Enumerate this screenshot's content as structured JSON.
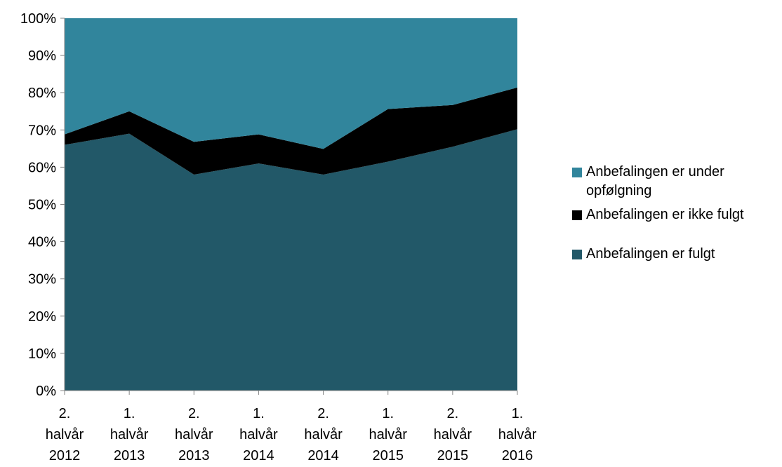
{
  "chart_data": {
    "type": "area",
    "stacked": true,
    "percent": true,
    "categories": [
      [
        "2.",
        "halvår",
        "2012"
      ],
      [
        "1.",
        "halvår",
        "2013"
      ],
      [
        "2.",
        "halvår",
        "2013"
      ],
      [
        "1.",
        "halvår",
        "2014"
      ],
      [
        "2.",
        "halvår",
        "2014"
      ],
      [
        "1.",
        "halvår",
        "2015"
      ],
      [
        "2.",
        "halvår",
        "2015"
      ],
      [
        "1.",
        "halvår",
        "2016"
      ]
    ],
    "series": [
      {
        "name": "Anbefalingen er fulgt",
        "color": "#225868",
        "values": [
          66,
          69,
          58,
          61,
          58,
          61.5,
          65.5,
          70.2
        ]
      },
      {
        "name": "Anbefalingen er ikke fulgt",
        "color": "#000000",
        "values": [
          2.8,
          6,
          8.8,
          7.8,
          6.9,
          14.1,
          11.2,
          11.2
        ]
      },
      {
        "name": "Anbefalingen er under opfølgning",
        "color": "#31859c",
        "values": [
          31.2,
          25,
          33.2,
          31.2,
          35.1,
          24.4,
          23.3,
          18.6
        ]
      }
    ],
    "y_ticks": [
      "0%",
      "10%",
      "20%",
      "30%",
      "40%",
      "50%",
      "60%",
      "70%",
      "80%",
      "90%",
      "100%"
    ],
    "ylim": [
      0,
      100
    ],
    "grid": false,
    "legend_position": "right",
    "legend_order": [
      "Anbefalingen er under opfølgning",
      "Anbefalingen er ikke fulgt",
      "Anbefalingen er fulgt"
    ]
  }
}
